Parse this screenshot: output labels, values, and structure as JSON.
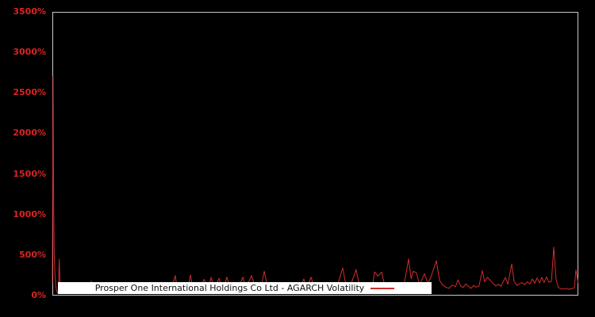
{
  "chart": {
    "background": "#000000",
    "frame_color": "#c8c8c8",
    "label_color": "#dd2222",
    "line_color": "#d22c2c",
    "legend_text_color": "#111111",
    "legend_background": "#ffffff"
  },
  "chart_data": {
    "type": "line",
    "title": "",
    "xlabel": "",
    "ylabel": "",
    "ylim": [
      0,
      3500
    ],
    "grid": false,
    "x_tick_labels": [],
    "legend_position": "bottom-center",
    "y_ticks": [
      {
        "label": "0%",
        "value": 0
      },
      {
        "label": "500%",
        "value": 500
      },
      {
        "label": "1000%",
        "value": 1000
      },
      {
        "label": "1500%",
        "value": 1500
      },
      {
        "label": "2000%",
        "value": 2000
      },
      {
        "label": "2500%",
        "value": 2500
      },
      {
        "label": "3000%",
        "value": 3000
      },
      {
        "label": "3500%",
        "value": 3500
      }
    ],
    "series": [
      {
        "name": "Prosper One International Holdings Co Ltd - AGARCH Volatility",
        "unit": "percent",
        "points": [
          [
            0.0,
            140
          ],
          [
            0.0013,
            2700
          ],
          [
            0.0025,
            1100
          ],
          [
            0.0035,
            520
          ],
          [
            0.005,
            260
          ],
          [
            0.0065,
            120
          ],
          [
            0.008,
            60
          ],
          [
            0.01,
            35
          ],
          [
            0.0115,
            55
          ],
          [
            0.0131,
            450
          ],
          [
            0.0145,
            150
          ],
          [
            0.016,
            45
          ],
          [
            0.02,
            30
          ],
          [
            0.026,
            38
          ],
          [
            0.032,
            30
          ],
          [
            0.04,
            36
          ],
          [
            0.048,
            30
          ],
          [
            0.056,
            40
          ],
          [
            0.065,
            32
          ],
          [
            0.072,
            60
          ],
          [
            0.0739,
            178
          ],
          [
            0.076,
            45
          ],
          [
            0.085,
            32
          ],
          [
            0.095,
            40
          ],
          [
            0.105,
            34
          ],
          [
            0.115,
            42
          ],
          [
            0.125,
            35
          ],
          [
            0.135,
            30
          ],
          [
            0.145,
            42
          ],
          [
            0.155,
            35
          ],
          [
            0.165,
            40
          ],
          [
            0.175,
            33
          ],
          [
            0.185,
            44
          ],
          [
            0.195,
            36
          ],
          [
            0.205,
            40
          ],
          [
            0.215,
            35
          ],
          [
            0.225,
            45
          ],
          [
            0.2337,
            248
          ],
          [
            0.238,
            55
          ],
          [
            0.248,
            45
          ],
          [
            0.2579,
            95
          ],
          [
            0.2624,
            255
          ],
          [
            0.268,
            55
          ],
          [
            0.278,
            65
          ],
          [
            0.2887,
            200
          ],
          [
            0.296,
            70
          ],
          [
            0.3018,
            225
          ],
          [
            0.308,
            80
          ],
          [
            0.3168,
            212
          ],
          [
            0.324,
            70
          ],
          [
            0.3319,
            228
          ],
          [
            0.34,
            60
          ],
          [
            0.352,
            55
          ],
          [
            0.362,
            228
          ],
          [
            0.368,
            90
          ],
          [
            0.3786,
            248
          ],
          [
            0.388,
            60
          ],
          [
            0.396,
            80
          ],
          [
            0.4028,
            300
          ],
          [
            0.41,
            70
          ],
          [
            0.422,
            55
          ],
          [
            0.435,
            65
          ],
          [
            0.448,
            58
          ],
          [
            0.46,
            70
          ],
          [
            0.47,
            85
          ],
          [
            0.4781,
            205
          ],
          [
            0.484,
            70
          ],
          [
            0.4917,
            228
          ],
          [
            0.5,
            65
          ],
          [
            0.513,
            55
          ],
          [
            0.527,
            65
          ],
          [
            0.54,
            80
          ],
          [
            0.552,
            342
          ],
          [
            0.558,
            130
          ],
          [
            0.566,
            110
          ],
          [
            0.5776,
            322
          ],
          [
            0.584,
            120
          ],
          [
            0.596,
            90
          ],
          [
            0.608,
            75
          ],
          [
            0.6124,
            292
          ],
          [
            0.619,
            240
          ],
          [
            0.626,
            290
          ],
          [
            0.633,
            95
          ],
          [
            0.645,
            75
          ],
          [
            0.658,
            85
          ],
          [
            0.668,
            110
          ],
          [
            0.6772,
            452
          ],
          [
            0.682,
            210
          ],
          [
            0.6863,
            300
          ],
          [
            0.6923,
            282
          ],
          [
            0.698,
            130
          ],
          [
            0.7074,
            270
          ],
          [
            0.714,
            150
          ],
          [
            0.7195,
            225
          ],
          [
            0.73,
            430
          ],
          [
            0.736,
            190
          ],
          [
            0.742,
            130
          ],
          [
            0.748,
            105
          ],
          [
            0.754,
            90
          ],
          [
            0.76,
            130
          ],
          [
            0.7666,
            110
          ],
          [
            0.7711,
            195
          ],
          [
            0.776,
            120
          ],
          [
            0.781,
            100
          ],
          [
            0.786,
            145
          ],
          [
            0.791,
            115
          ],
          [
            0.796,
            90
          ],
          [
            0.801,
            125
          ],
          [
            0.806,
            105
          ],
          [
            0.811,
            115
          ],
          [
            0.8175,
            310
          ],
          [
            0.822,
            170
          ],
          [
            0.827,
            225
          ],
          [
            0.832,
            195
          ],
          [
            0.838,
            150
          ],
          [
            0.843,
            120
          ],
          [
            0.848,
            140
          ],
          [
            0.853,
            115
          ],
          [
            0.8612,
            225
          ],
          [
            0.866,
            140
          ],
          [
            0.8733,
            390
          ],
          [
            0.878,
            175
          ],
          [
            0.883,
            125
          ],
          [
            0.888,
            145
          ],
          [
            0.893,
            160
          ],
          [
            0.898,
            135
          ],
          [
            0.903,
            170
          ],
          [
            0.908,
            145
          ],
          [
            0.9125,
            205
          ],
          [
            0.917,
            150
          ],
          [
            0.9216,
            218
          ],
          [
            0.926,
            155
          ],
          [
            0.9306,
            225
          ],
          [
            0.935,
            160
          ],
          [
            0.9397,
            232
          ],
          [
            0.944,
            165
          ],
          [
            0.9488,
            175
          ],
          [
            0.9533,
            598
          ],
          [
            0.9578,
            195
          ],
          [
            0.962,
            100
          ],
          [
            0.967,
            85
          ],
          [
            0.972,
            80
          ],
          [
            0.977,
            88
          ],
          [
            0.982,
            78
          ],
          [
            0.987,
            85
          ],
          [
            0.9925,
            95
          ],
          [
            0.9955,
            318
          ],
          [
            1.0,
            145
          ]
        ]
      }
    ]
  }
}
